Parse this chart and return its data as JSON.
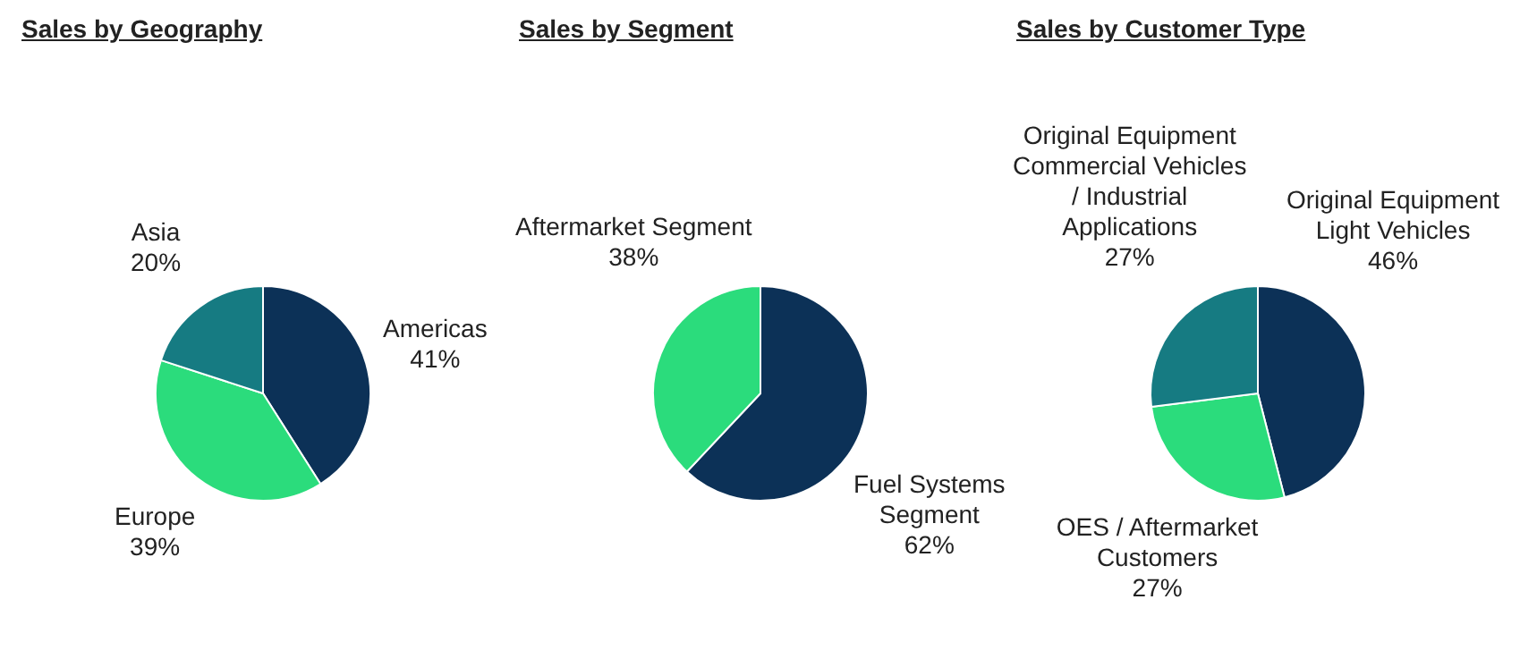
{
  "chart_data": [
    {
      "type": "pie",
      "title": "Sales by Geography",
      "categories": [
        "Americas",
        "Europe",
        "Asia"
      ],
      "values": [
        41,
        39,
        20
      ],
      "value_labels": [
        "41%",
        "39%",
        "20%"
      ],
      "colors": [
        "#0c3157",
        "#2bdc7c",
        "#167b82"
      ]
    },
    {
      "type": "pie",
      "title": "Sales by Segment",
      "categories": [
        "Fuel Systems Segment",
        "Aftermarket Segment"
      ],
      "values": [
        62,
        38
      ],
      "value_labels": [
        "62%",
        "38%"
      ],
      "colors": [
        "#0c3157",
        "#2bdc7c"
      ]
    },
    {
      "type": "pie",
      "title": "Sales by Customer Type",
      "categories": [
        "Original Equipment Light Vehicles",
        "OES / Aftermarket Customers",
        "Original Equipment Commercial Vehicles / Industrial Applications"
      ],
      "values": [
        46,
        27,
        27
      ],
      "value_labels": [
        "46%",
        "27%",
        "27%"
      ],
      "colors": [
        "#0c3157",
        "#2bdc7c",
        "#167b82"
      ]
    }
  ]
}
